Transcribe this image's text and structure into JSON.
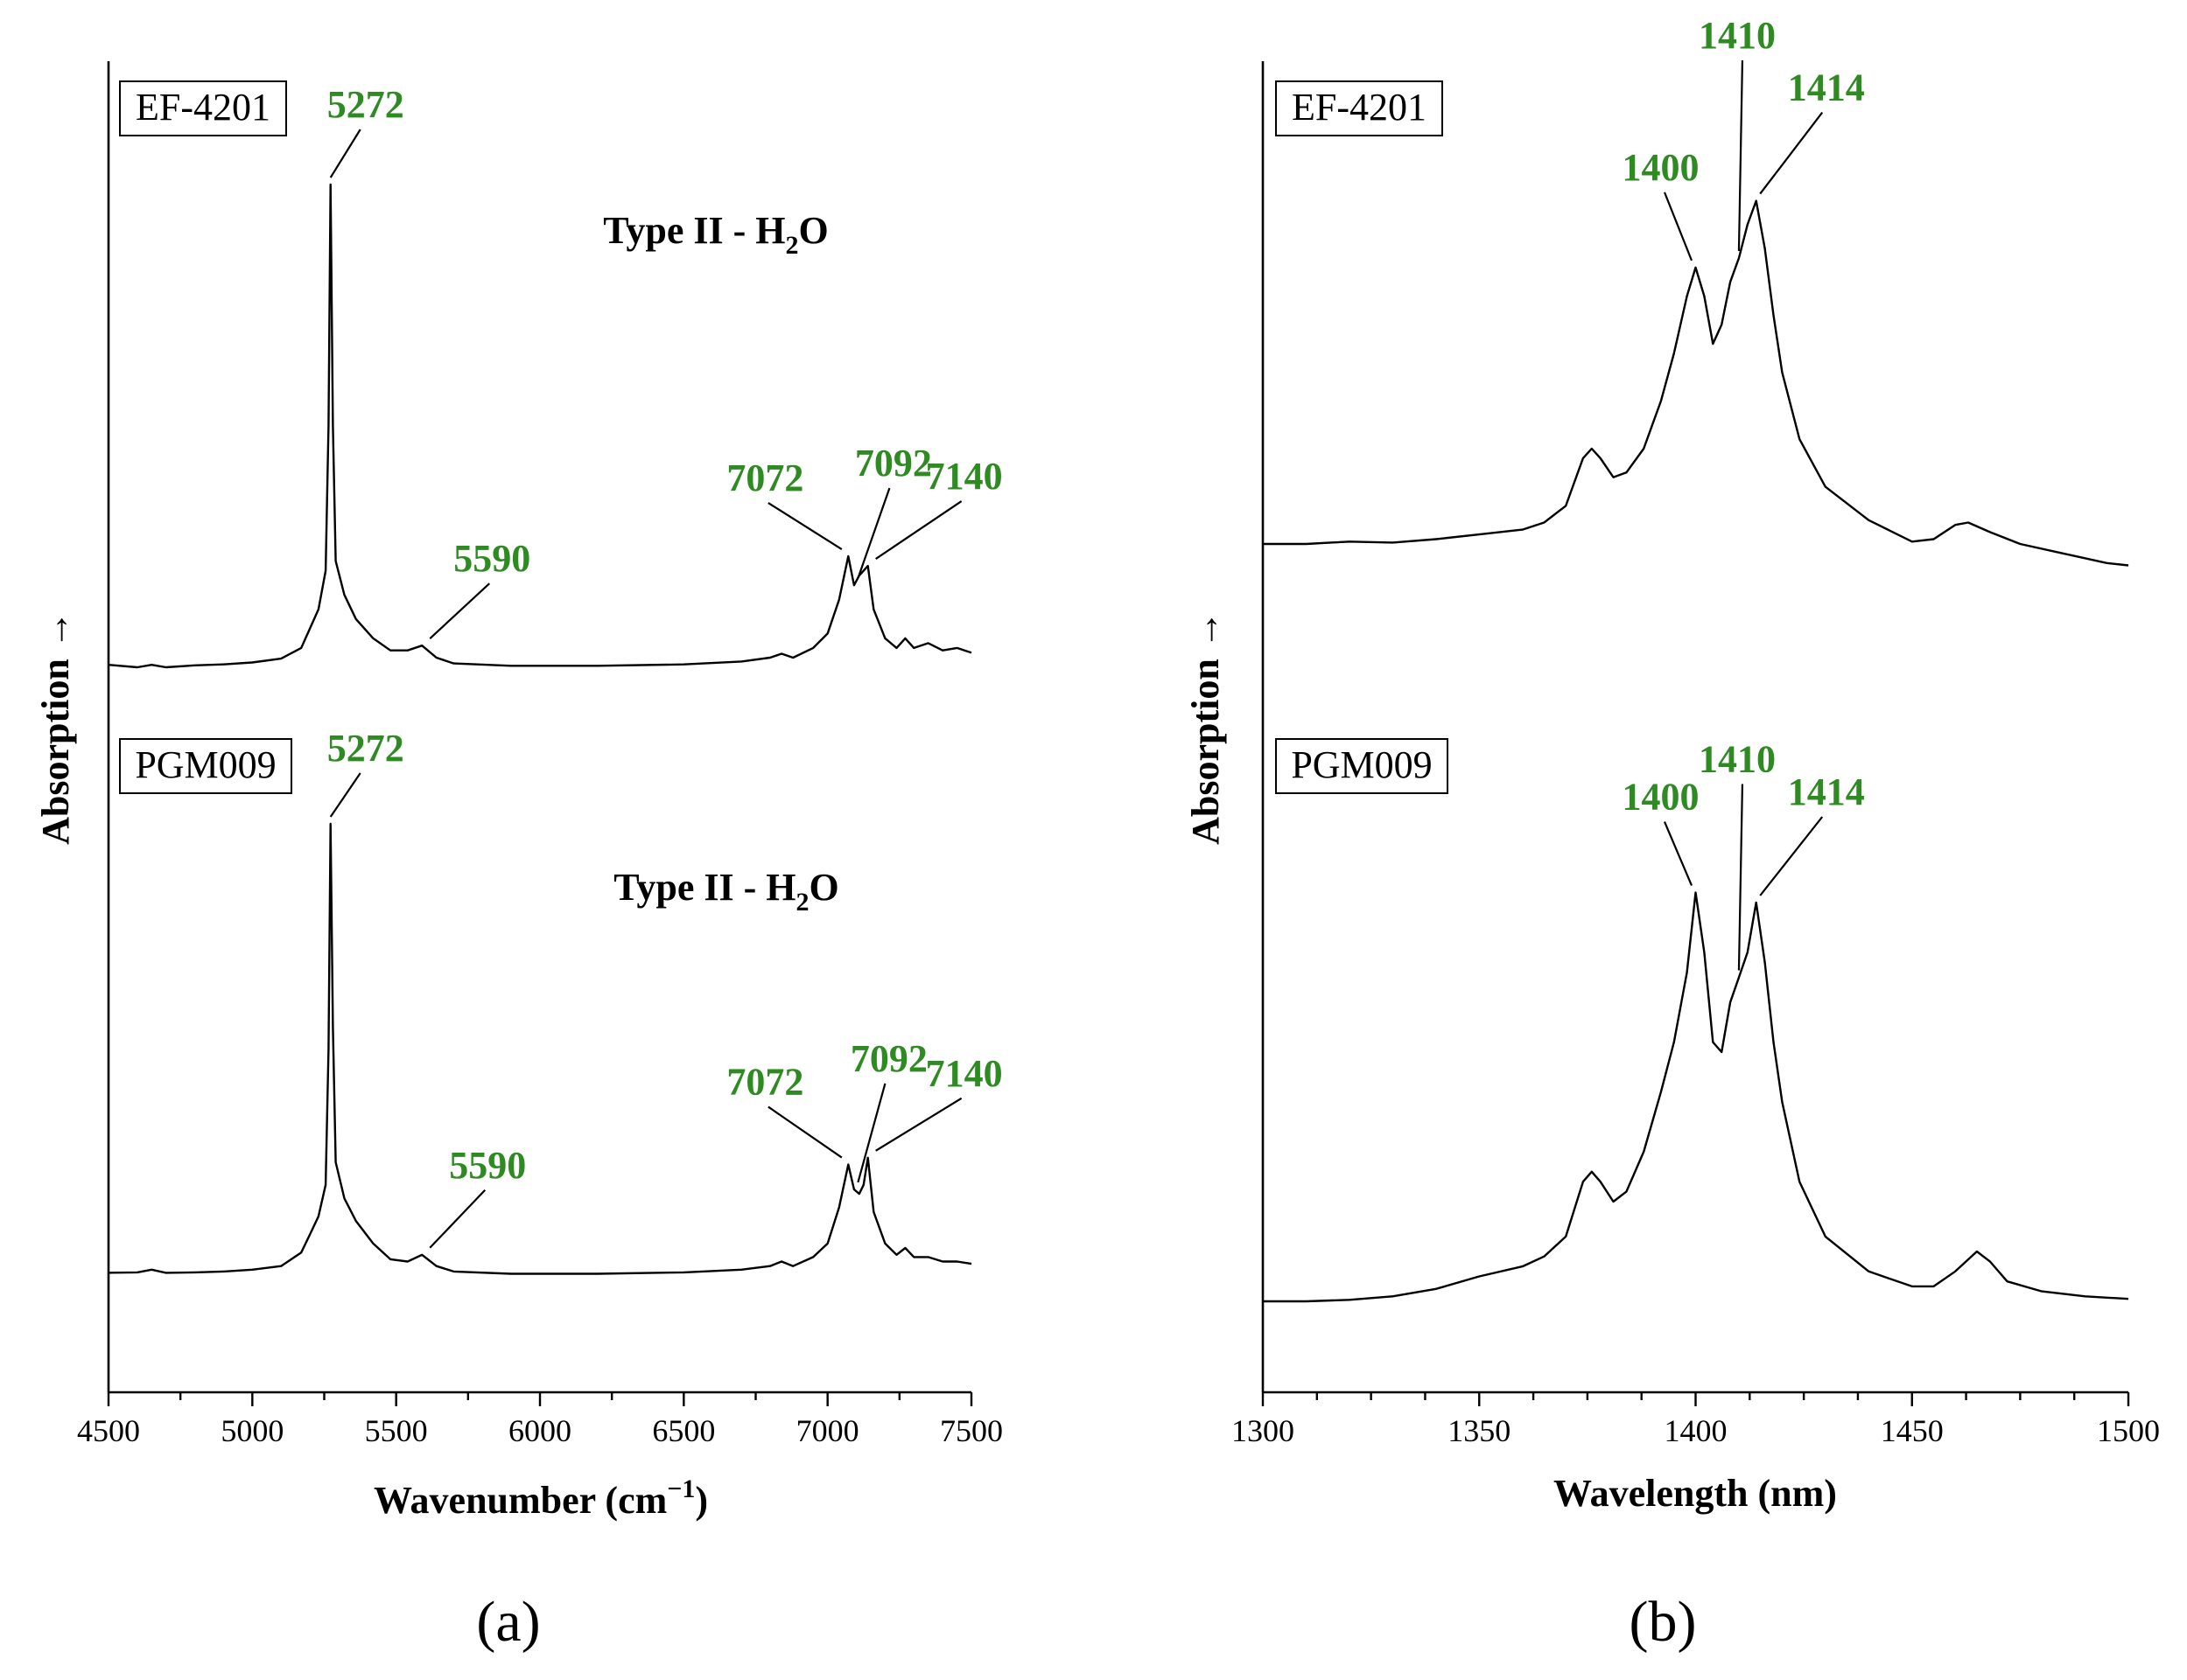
{
  "colors": {
    "peak_label": "#2e8b22",
    "line": "#000000",
    "background": "#ffffff"
  },
  "chart_data": [
    {
      "type": "line",
      "panel": "(a)",
      "xlabel": "Wavenumber (cm",
      "xlabel_superscript": "−1",
      "xlabel_suffix": ")",
      "ylabel": "Absorption →",
      "xlim": [
        4500,
        7500
      ],
      "xticks": [
        "4500",
        "5000",
        "5500",
        "6000",
        "6500",
        "7000",
        "7500"
      ],
      "x_minor_step": 250,
      "y_ticks_shown": false,
      "series": [
        {
          "name": "EF-4201",
          "subtitle_main": "Type II - H",
          "subtitle_sub": "2",
          "subtitle_end": "O",
          "points": [
            [
              4500,
              0.005
            ],
            [
              4600,
              0.0
            ],
            [
              4650,
              0.005
            ],
            [
              4700,
              0.0
            ],
            [
              4800,
              0.004
            ],
            [
              4900,
              0.006
            ],
            [
              5000,
              0.01
            ],
            [
              5100,
              0.018
            ],
            [
              5170,
              0.04
            ],
            [
              5200,
              0.08
            ],
            [
              5230,
              0.12
            ],
            [
              5255,
              0.2
            ],
            [
              5265,
              0.5
            ],
            [
              5272,
              1.0
            ],
            [
              5280,
              0.5
            ],
            [
              5290,
              0.22
            ],
            [
              5320,
              0.15
            ],
            [
              5360,
              0.1
            ],
            [
              5420,
              0.06
            ],
            [
              5480,
              0.035
            ],
            [
              5540,
              0.035
            ],
            [
              5590,
              0.045
            ],
            [
              5640,
              0.02
            ],
            [
              5700,
              0.008
            ],
            [
              5900,
              0.003
            ],
            [
              6200,
              0.003
            ],
            [
              6500,
              0.006
            ],
            [
              6700,
              0.012
            ],
            [
              6800,
              0.02
            ],
            [
              6840,
              0.028
            ],
            [
              6880,
              0.02
            ],
            [
              6950,
              0.04
            ],
            [
              7000,
              0.07
            ],
            [
              7040,
              0.14
            ],
            [
              7072,
              0.23
            ],
            [
              7092,
              0.17
            ],
            [
              7110,
              0.19
            ],
            [
              7125,
              0.2
            ],
            [
              7140,
              0.21
            ],
            [
              7160,
              0.12
            ],
            [
              7200,
              0.06
            ],
            [
              7240,
              0.04
            ],
            [
              7270,
              0.06
            ],
            [
              7300,
              0.04
            ],
            [
              7350,
              0.05
            ],
            [
              7400,
              0.035
            ],
            [
              7450,
              0.04
            ],
            [
              7500,
              0.03
            ]
          ]
        },
        {
          "name": "PGM009",
          "subtitle_main": "Type II - H",
          "subtitle_sub": "2",
          "subtitle_end": "O",
          "points": [
            [
              4500,
              0.005
            ],
            [
              4600,
              0.006
            ],
            [
              4650,
              0.012
            ],
            [
              4700,
              0.005
            ],
            [
              4800,
              0.006
            ],
            [
              4900,
              0.008
            ],
            [
              5000,
              0.012
            ],
            [
              5100,
              0.02
            ],
            [
              5170,
              0.05
            ],
            [
              5200,
              0.09
            ],
            [
              5230,
              0.13
            ],
            [
              5255,
              0.2
            ],
            [
              5265,
              0.5
            ],
            [
              5272,
              1.0
            ],
            [
              5280,
              0.55
            ],
            [
              5290,
              0.25
            ],
            [
              5320,
              0.17
            ],
            [
              5360,
              0.12
            ],
            [
              5420,
              0.07
            ],
            [
              5480,
              0.035
            ],
            [
              5540,
              0.03
            ],
            [
              5590,
              0.045
            ],
            [
              5640,
              0.02
            ],
            [
              5700,
              0.008
            ],
            [
              5900,
              0.003
            ],
            [
              6200,
              0.003
            ],
            [
              6500,
              0.006
            ],
            [
              6700,
              0.012
            ],
            [
              6800,
              0.02
            ],
            [
              6840,
              0.03
            ],
            [
              6880,
              0.02
            ],
            [
              6950,
              0.04
            ],
            [
              7000,
              0.07
            ],
            [
              7040,
              0.15
            ],
            [
              7072,
              0.245
            ],
            [
              7092,
              0.19
            ],
            [
              7110,
              0.18
            ],
            [
              7125,
              0.2
            ],
            [
              7140,
              0.26
            ],
            [
              7160,
              0.14
            ],
            [
              7200,
              0.07
            ],
            [
              7240,
              0.045
            ],
            [
              7270,
              0.06
            ],
            [
              7300,
              0.04
            ],
            [
              7350,
              0.04
            ],
            [
              7400,
              0.03
            ],
            [
              7450,
              0.03
            ],
            [
              7500,
              0.025
            ]
          ]
        }
      ],
      "annotations": [
        {
          "series": "EF-4201",
          "text": "5272",
          "x": 5272
        },
        {
          "series": "EF-4201",
          "text": "5590",
          "x": 5590
        },
        {
          "series": "EF-4201",
          "text": "7072",
          "x": 7072
        },
        {
          "series": "EF-4201",
          "text": "7092",
          "x": 7092
        },
        {
          "series": "EF-4201",
          "text": "7140",
          "x": 7140
        },
        {
          "series": "PGM009",
          "text": "5272",
          "x": 5272
        },
        {
          "series": "PGM009",
          "text": "5590",
          "x": 5590
        },
        {
          "series": "PGM009",
          "text": "7072",
          "x": 7072
        },
        {
          "series": "PGM009",
          "text": "7092",
          "x": 7092
        },
        {
          "series": "PGM009",
          "text": "7140",
          "x": 7140
        }
      ]
    },
    {
      "type": "line",
      "panel": "(b)",
      "xlabel": "Wavelength (nm)",
      "ylabel": "Absorption →",
      "xlim": [
        1300,
        1500
      ],
      "xticks": [
        "1300",
        "1350",
        "1400",
        "1450",
        "1500"
      ],
      "x_minor_step": 12.5,
      "y_ticks_shown": false,
      "series": [
        {
          "name": "EF-4201",
          "points": [
            [
              1300,
              0.0
            ],
            [
              1310,
              0.0
            ],
            [
              1320,
              0.005
            ],
            [
              1330,
              0.003
            ],
            [
              1340,
              0.01
            ],
            [
              1350,
              0.02
            ],
            [
              1360,
              0.03
            ],
            [
              1365,
              0.045
            ],
            [
              1370,
              0.08
            ],
            [
              1374,
              0.18
            ],
            [
              1376,
              0.2
            ],
            [
              1378,
              0.18
            ],
            [
              1381,
              0.14
            ],
            [
              1384,
              0.15
            ],
            [
              1388,
              0.2
            ],
            [
              1392,
              0.3
            ],
            [
              1395,
              0.4
            ],
            [
              1398,
              0.52
            ],
            [
              1400,
              0.58
            ],
            [
              1402,
              0.52
            ],
            [
              1404,
              0.42
            ],
            [
              1406,
              0.46
            ],
            [
              1408,
              0.55
            ],
            [
              1410,
              0.6
            ],
            [
              1412,
              0.67
            ],
            [
              1414,
              0.72
            ],
            [
              1416,
              0.62
            ],
            [
              1418,
              0.48
            ],
            [
              1420,
              0.36
            ],
            [
              1424,
              0.22
            ],
            [
              1430,
              0.12
            ],
            [
              1440,
              0.05
            ],
            [
              1450,
              0.005
            ],
            [
              1455,
              0.01
            ],
            [
              1460,
              0.04
            ],
            [
              1463,
              0.045
            ],
            [
              1468,
              0.025
            ],
            [
              1475,
              0.0
            ],
            [
              1485,
              -0.02
            ],
            [
              1495,
              -0.04
            ],
            [
              1500,
              -0.045
            ]
          ]
        },
        {
          "name": "PGM009",
          "points": [
            [
              1300,
              0.0
            ],
            [
              1310,
              0.0
            ],
            [
              1320,
              0.003
            ],
            [
              1330,
              0.01
            ],
            [
              1340,
              0.025
            ],
            [
              1350,
              0.05
            ],
            [
              1360,
              0.07
            ],
            [
              1365,
              0.09
            ],
            [
              1370,
              0.13
            ],
            [
              1374,
              0.24
            ],
            [
              1376,
              0.26
            ],
            [
              1378,
              0.24
            ],
            [
              1381,
              0.2
            ],
            [
              1384,
              0.22
            ],
            [
              1388,
              0.3
            ],
            [
              1392,
              0.42
            ],
            [
              1395,
              0.52
            ],
            [
              1398,
              0.66
            ],
            [
              1400,
              0.82
            ],
            [
              1402,
              0.7
            ],
            [
              1404,
              0.52
            ],
            [
              1406,
              0.5
            ],
            [
              1408,
              0.6
            ],
            [
              1410,
              0.65
            ],
            [
              1412,
              0.7
            ],
            [
              1414,
              0.8
            ],
            [
              1416,
              0.68
            ],
            [
              1418,
              0.52
            ],
            [
              1420,
              0.4
            ],
            [
              1424,
              0.24
            ],
            [
              1430,
              0.13
            ],
            [
              1440,
              0.06
            ],
            [
              1450,
              0.03
            ],
            [
              1455,
              0.03
            ],
            [
              1460,
              0.06
            ],
            [
              1465,
              0.1
            ],
            [
              1468,
              0.08
            ],
            [
              1472,
              0.04
            ],
            [
              1480,
              0.02
            ],
            [
              1490,
              0.01
            ],
            [
              1500,
              0.005
            ]
          ]
        }
      ],
      "annotations": [
        {
          "series": "EF-4201",
          "text": "1400",
          "x": 1400
        },
        {
          "series": "EF-4201",
          "text": "1410",
          "x": 1410
        },
        {
          "series": "EF-4201",
          "text": "1414",
          "x": 1414
        },
        {
          "series": "PGM009",
          "text": "1400",
          "x": 1400
        },
        {
          "series": "PGM009",
          "text": "1410",
          "x": 1410
        },
        {
          "series": "PGM009",
          "text": "1414",
          "x": 1414
        }
      ]
    }
  ]
}
